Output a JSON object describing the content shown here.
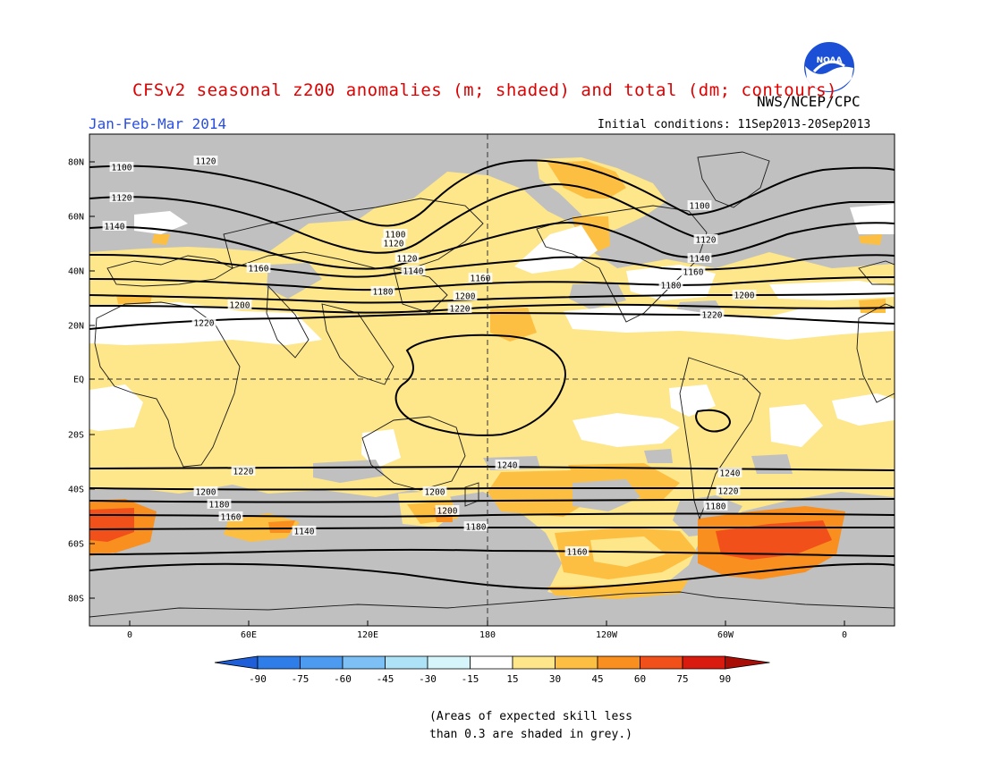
{
  "title": "CFSv2 seasonal z200 anomalies (m; shaded) and total (dm; contours)",
  "period": "Jan-Feb-Mar 2014",
  "agency": "NWS/NCEP/CPC",
  "initial_conditions": "Initial conditions: 11Sep2013-20Sep2013",
  "logo_text": "NOAA",
  "map": {
    "lon_labels": [
      "0",
      "60E",
      "120E",
      "180",
      "120W",
      "60W",
      "0"
    ],
    "lat_labels": [
      "80N",
      "60N",
      "40N",
      "20N",
      "EQ",
      "20S",
      "40S",
      "60S",
      "80S"
    ],
    "contour_labels": [
      "1100",
      "1100",
      "1100",
      "1120",
      "1120",
      "1120",
      "1120",
      "1120",
      "1140",
      "1140",
      "1140",
      "1140",
      "1160",
      "1160",
      "1160",
      "1160",
      "1160",
      "1180",
      "1180",
      "1180",
      "1180",
      "1180",
      "1200",
      "1200",
      "1200",
      "1200",
      "1200",
      "1200",
      "1220",
      "1220",
      "1220",
      "1220",
      "1220",
      "1240",
      "1240"
    ],
    "grey_note": "grey = expected skill < 0.3"
  },
  "colorbar": {
    "labels": [
      "-90",
      "-75",
      "-60",
      "-45",
      "-30",
      "-15",
      "15",
      "30",
      "45",
      "60",
      "75",
      "90"
    ],
    "colors": [
      "#1e5fd9",
      "#2f7de8",
      "#4c9bf0",
      "#7cc0f5",
      "#aee3f7",
      "#d6f5fa",
      "#ffffff",
      "#fee68a",
      "#fdbf42",
      "#f98f1f",
      "#f2501a",
      "#d81a0f",
      "#a80d06"
    ]
  },
  "note_lines": [
    "(Areas of expected skill less",
    "than 0.3 are shaded in grey.)"
  ],
  "colors": {
    "title": "#e00000",
    "period": "#2a4fe0",
    "grey": "#c0c0c0",
    "light_yellow": "#fee68a",
    "orange": "#fdbf42",
    "dark_orange": "#f98f1f",
    "red_orange": "#f2501a"
  }
}
